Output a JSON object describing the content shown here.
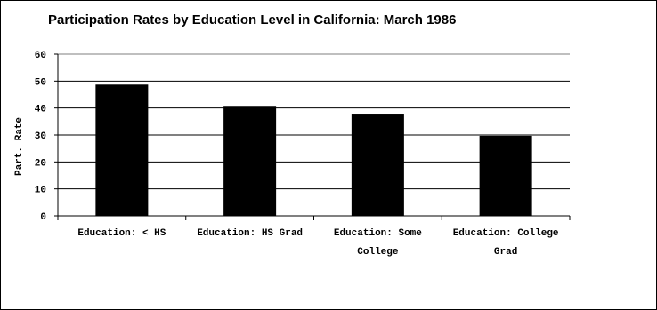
{
  "chart_data": {
    "type": "bar",
    "title": "Participation Rates by Education Level in California: March 1986",
    "xlabel": "",
    "ylabel": "Part. Rate",
    "categories": [
      [
        "Education: < HS"
      ],
      [
        "Education: HS Grad"
      ],
      [
        "Education: Some",
        "College"
      ],
      [
        "Education: College",
        "Grad"
      ]
    ],
    "values": [
      48.7,
      40.8,
      37.9,
      29.7
    ],
    "ylim": [
      0,
      60
    ],
    "yticks": [
      "0",
      "10",
      "20",
      "30",
      "40",
      "50",
      "60"
    ],
    "grid": true,
    "legend": "none",
    "bar_color": "#000000"
  }
}
